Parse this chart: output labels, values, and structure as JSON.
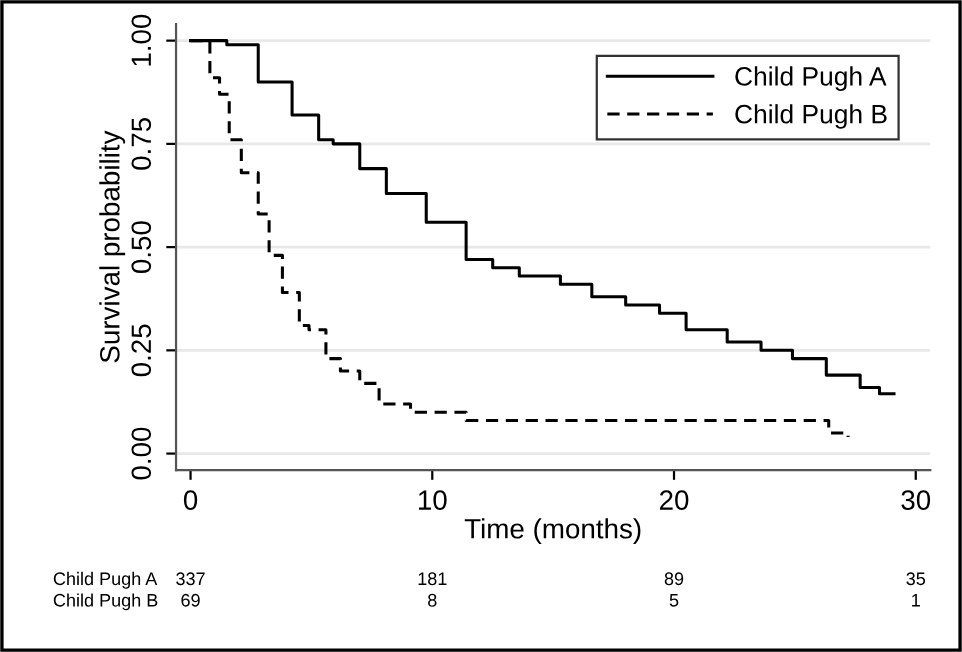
{
  "chart_data": {
    "type": "step",
    "xlabel": "Time (months)",
    "ylabel": "Survival probability",
    "xlim": [
      -0.6,
      30.6
    ],
    "ylim": [
      -0.04,
      1.04
    ],
    "xticks": [
      0,
      10,
      20,
      30
    ],
    "yticks": [
      {
        "value": 0,
        "label": "0.00"
      },
      {
        "value": 0.25,
        "label": "0.25"
      },
      {
        "value": 0.5,
        "label": "0.50"
      },
      {
        "value": 0.75,
        "label": "0.75"
      },
      {
        "value": 1,
        "label": "1.00"
      }
    ],
    "grid": "y",
    "legend": "top right",
    "series": [
      {
        "name": "Child Pugh A",
        "color": "#000000",
        "line_style": "solid",
        "x": [
          0,
          1.5,
          2.8,
          4.2,
          5.3,
          5.9,
          7,
          8.1,
          9.75,
          11.4,
          12.5,
          13.6,
          15.3,
          16.6,
          18,
          19.4,
          20.5,
          22.2,
          23.6,
          24.9,
          26.3,
          27.7,
          28.5,
          29.1
        ],
        "values": [
          1.0,
          0.99,
          0.9,
          0.82,
          0.76,
          0.75,
          0.69,
          0.63,
          0.56,
          0.47,
          0.45,
          0.43,
          0.41,
          0.38,
          0.36,
          0.34,
          0.3,
          0.27,
          0.25,
          0.23,
          0.19,
          0.16,
          0.145,
          0.145
        ]
      },
      {
        "name": "Child Pugh B",
        "color": "#000000",
        "line_style": "dashed",
        "x": [
          0,
          0.8,
          1.2,
          1.6,
          2.1,
          2.8,
          3.25,
          3.8,
          4.5,
          4.9,
          5.6,
          6.2,
          7,
          7.8,
          9.1,
          11.4,
          13.3,
          26.4,
          27.2
        ],
        "values": [
          1.0,
          0.91,
          0.87,
          0.76,
          0.68,
          0.58,
          0.48,
          0.39,
          0.31,
          0.3,
          0.23,
          0.2,
          0.17,
          0.12,
          0.1,
          0.08,
          0.08,
          0.05,
          0.04
        ]
      }
    ],
    "annotations": [
      "Child Pugh A",
      "337",
      "181",
      "89",
      "35",
      "Child Pugh B",
      "69",
      "8",
      "5",
      "1"
    ]
  }
}
